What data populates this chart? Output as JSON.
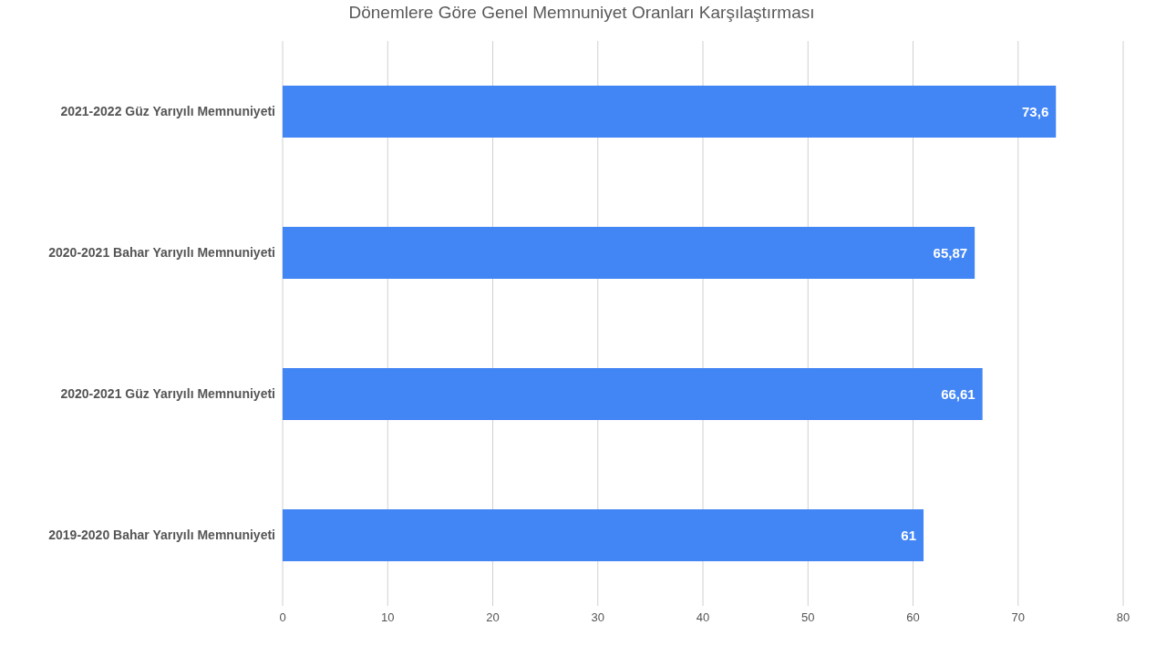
{
  "chart_data": {
    "type": "bar",
    "orientation": "horizontal",
    "title": "Dönemlere Göre Genel Memnuniyet Oranları Karşılaştırması",
    "categories": [
      "2021-2022 Güz Yarıyılı Memnuniyeti",
      "2020-2021 Bahar Yarıyılı Memnuniyeti",
      "2020-2021 Güz Yarıyılı Memnuniyeti",
      "2019-2020 Bahar Yarıyılı Memnuniyeti"
    ],
    "values": [
      73.6,
      65.87,
      66.61,
      61
    ],
    "value_labels": [
      "73,6",
      "65,87",
      "66,61",
      "61"
    ],
    "color": "#4285f4",
    "xlim": [
      0,
      80
    ],
    "xticks": [
      0,
      10,
      20,
      30,
      40,
      50,
      60,
      70,
      80
    ],
    "grid": "x",
    "legend": false
  }
}
